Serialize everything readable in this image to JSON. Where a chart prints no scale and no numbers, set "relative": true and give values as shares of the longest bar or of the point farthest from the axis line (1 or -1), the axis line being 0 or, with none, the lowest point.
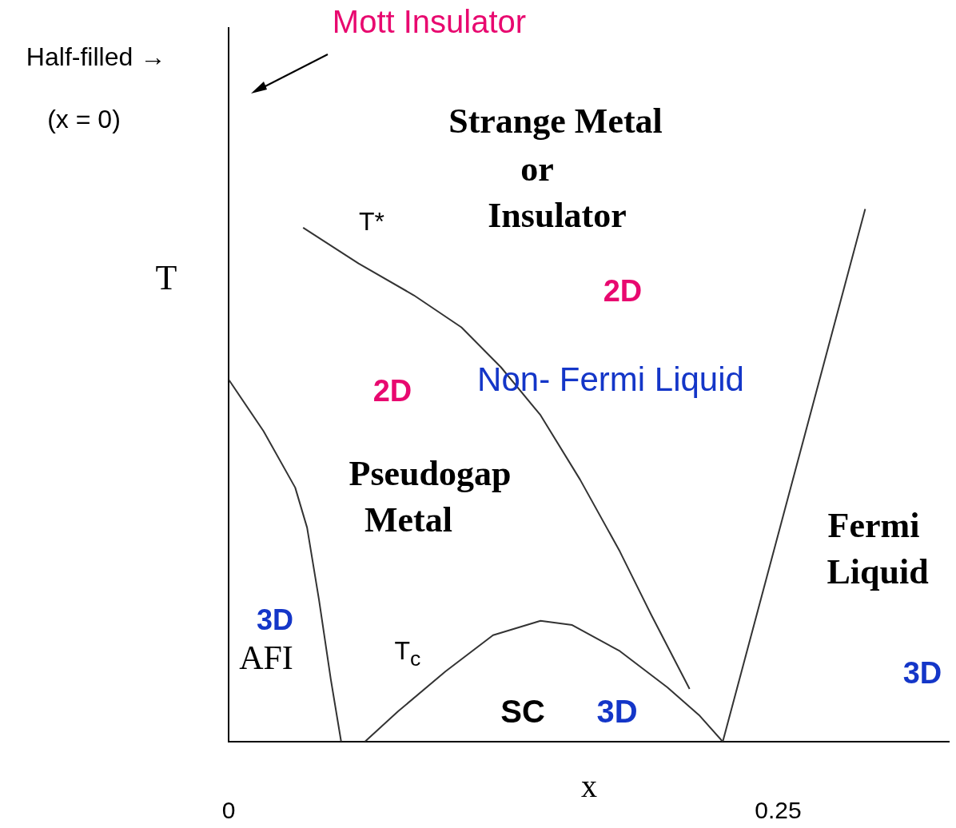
{
  "chart_data": {
    "type": "line",
    "relative": true,
    "xlabel": "x",
    "ylabel": "T",
    "xlim": [
      0,
      0.328
    ],
    "xticks": [
      0,
      0.25
    ],
    "grid": false,
    "legend": false,
    "marker": "none",
    "line_style": "solid",
    "series": [
      {
        "color": "#333333",
        "x": [
          0,
          0.0159,
          0.0303,
          0.0357,
          0.0411,
          0.0465,
          0.0512
        ],
        "values": [
          0.68,
          0.583,
          0.477,
          0.402,
          0.267,
          0.117,
          0
        ]
      },
      {
        "color": "#333333",
        "x": [
          0.0339,
          0.0591,
          0.0843,
          0.1059,
          0.1239,
          0.1419,
          0.1599,
          0.178,
          0.1924,
          0.2097
        ],
        "values": [
          0.965,
          0.898,
          0.838,
          0.778,
          0.703,
          0.613,
          0.492,
          0.357,
          0.237,
          0.099
        ]
      },
      {
        "color": "#333333",
        "x": [
          0.062,
          0.0771,
          0.0987,
          0.1203,
          0.1419,
          0.1563,
          0.178,
          0.1996,
          0.214,
          0.2248
        ],
        "values": [
          0,
          0.057,
          0.132,
          0.2,
          0.227,
          0.219,
          0.17,
          0.102,
          0.05,
          0
        ]
      },
      {
        "color": "#333333",
        "x": [
          0.2248,
          0.2896
        ],
        "values": [
          0,
          1
        ]
      }
    ],
    "annotations": [
      "Mott Insulator",
      "Half-filled →",
      "(x = 0)",
      "Strange Metal",
      "or",
      "Insulator",
      "T*",
      "2D",
      "Non- Fermi Liquid",
      "2D",
      "Pseudogap",
      "Metal",
      "Fermi",
      "Liquid",
      "3D",
      "AFI",
      "T$_{c}$",
      "SC",
      "3D",
      "3D"
    ]
  }
}
